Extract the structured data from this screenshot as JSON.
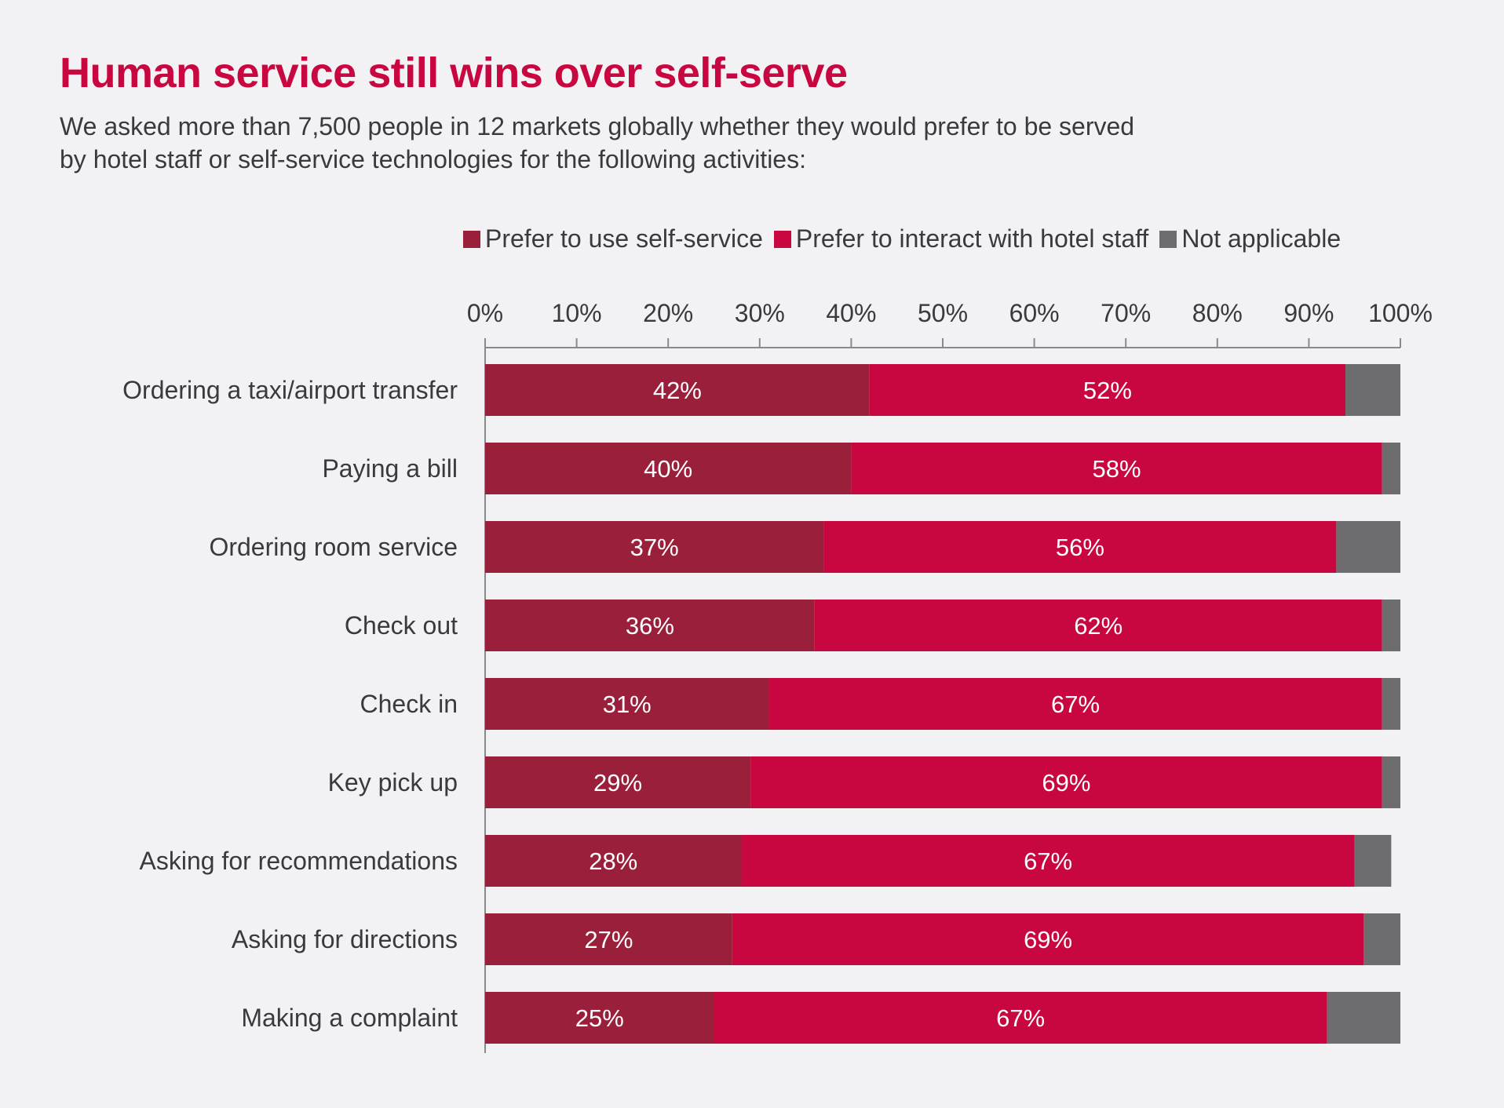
{
  "chart_data": {
    "type": "bar",
    "orientation": "horizontal",
    "stacked": true,
    "title": "Human service still wins over self-serve",
    "subtitle": "We asked more than 7,500 people in 12 markets globally whether they would prefer to be served by hotel staff or self-service technologies for the following activities:",
    "categories": [
      "Ordering a taxi/airport transfer",
      "Paying a bill",
      "Ordering room service",
      "Check out",
      "Check in",
      "Key pick up",
      "Asking for recommendations",
      "Asking for directions",
      "Making a complaint"
    ],
    "series": [
      {
        "name": "Prefer to use self-service",
        "color": "#9a1f3a",
        "values": [
          42,
          40,
          37,
          36,
          31,
          29,
          28,
          27,
          25
        ],
        "labels": [
          "42%",
          "40%",
          "37%",
          "36%",
          "31%",
          "29%",
          "28%",
          "27%",
          "25%"
        ]
      },
      {
        "name": "Prefer to interact with hotel staff",
        "color": "#c8063f",
        "values": [
          52,
          58,
          56,
          62,
          67,
          69,
          67,
          69,
          67
        ],
        "labels": [
          "52%",
          "58%",
          "56%",
          "62%",
          "67%",
          "69%",
          "67%",
          "69%",
          "67%"
        ]
      },
      {
        "name": "Not applicable",
        "color": "#6d6d6f",
        "values": [
          6,
          2,
          7,
          2,
          2,
          2,
          4,
          4,
          8
        ],
        "labels": [
          "",
          "",
          "",
          "",
          "",
          "",
          "",
          "",
          ""
        ]
      }
    ],
    "xlim": [
      0,
      100
    ],
    "xticks": [
      "0%",
      "10%",
      "20%",
      "30%",
      "40%",
      "50%",
      "60%",
      "70%",
      "80%",
      "90%",
      "100%"
    ],
    "legend_position": "top-right",
    "grid": false
  }
}
